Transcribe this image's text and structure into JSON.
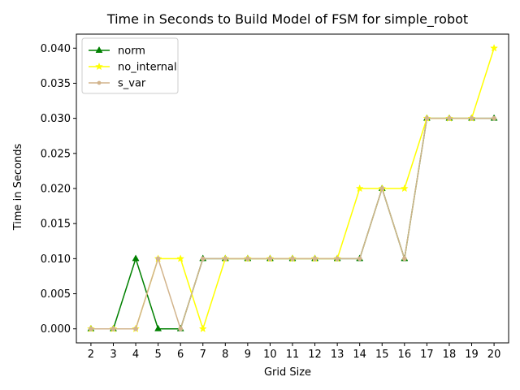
{
  "chart_data": {
    "type": "line",
    "title": "Time in Seconds to Build Model of FSM for simple_robot",
    "xlabel": "Grid Size",
    "ylabel": "Time in Seconds",
    "x": [
      2,
      3,
      4,
      5,
      6,
      7,
      8,
      9,
      10,
      11,
      12,
      13,
      14,
      15,
      16,
      17,
      18,
      19,
      20
    ],
    "xlim": [
      1.35,
      20.65
    ],
    "ylim": [
      -0.002,
      0.042
    ],
    "yticks": [
      0.0,
      0.005,
      0.01,
      0.015,
      0.02,
      0.025,
      0.03,
      0.035,
      0.04
    ],
    "ytick_labels": [
      "0.000",
      "0.005",
      "0.010",
      "0.015",
      "0.020",
      "0.025",
      "0.030",
      "0.035",
      "0.040"
    ],
    "grid": false,
    "legend": "top-left",
    "series": [
      {
        "name": "norm",
        "color": "#008000",
        "marker": "triangle",
        "values": [
          0,
          0,
          0.01,
          0,
          0,
          0.01,
          0.01,
          0.01,
          0.01,
          0.01,
          0.01,
          0.01,
          0.01,
          0.02,
          0.01,
          0.03,
          0.03,
          0.03,
          0.03
        ]
      },
      {
        "name": "no_internal",
        "color": "#ffff00",
        "marker": "star",
        "values": [
          0,
          0,
          0,
          0.01,
          0.01,
          0,
          0.01,
          0.01,
          0.01,
          0.01,
          0.01,
          0.01,
          0.02,
          0.02,
          0.02,
          0.03,
          0.03,
          0.03,
          0.04
        ]
      },
      {
        "name": "s_var",
        "color": "#d2b48c",
        "marker": "circle",
        "values": [
          0,
          0,
          0,
          0.01,
          0,
          0.01,
          0.01,
          0.01,
          0.01,
          0.01,
          0.01,
          0.01,
          0.01,
          0.02,
          0.01,
          0.03,
          0.03,
          0.03,
          0.03
        ]
      }
    ]
  }
}
